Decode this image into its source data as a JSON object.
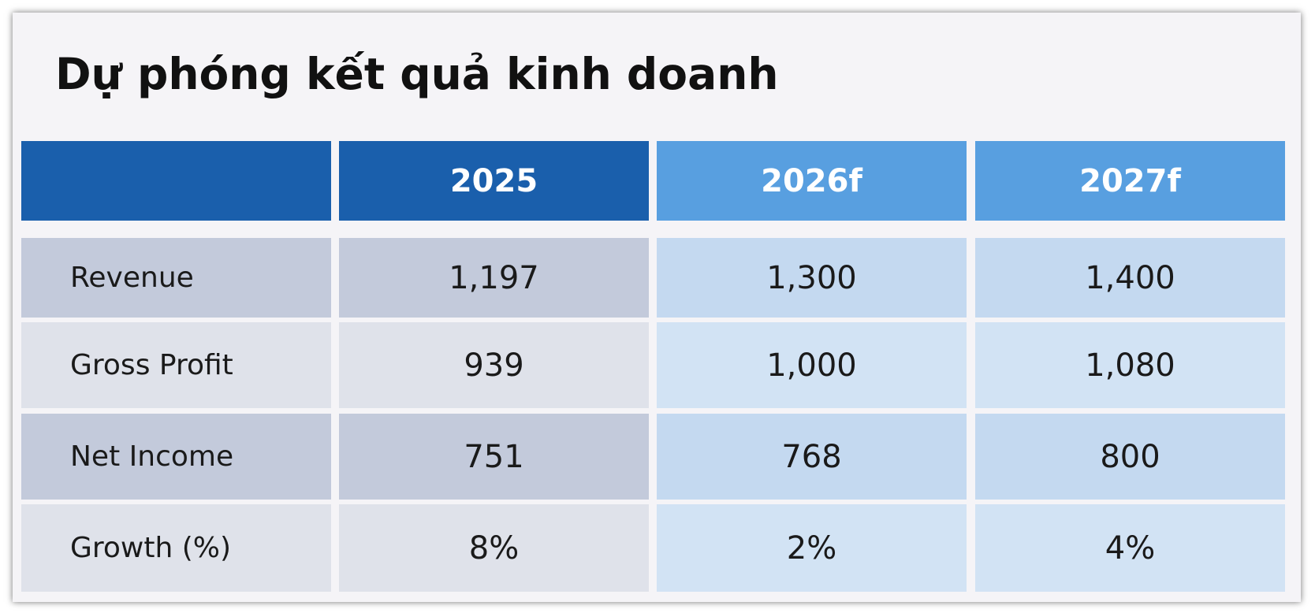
{
  "title": "Dự phóng kết quả kinh doanh",
  "table": {
    "columns": [
      "2025",
      "2026f",
      "2027f"
    ],
    "rows": [
      [
        "Revenue",
        "1,197",
        "1,300",
        "1,400"
      ],
      [
        "Gross Profit",
        "939",
        "1,000",
        "1,080"
      ],
      [
        "Net Income",
        "751",
        "768",
        "800"
      ],
      [
        "Growth (%)",
        "8%",
        "2%",
        "4%"
      ]
    ]
  }
}
